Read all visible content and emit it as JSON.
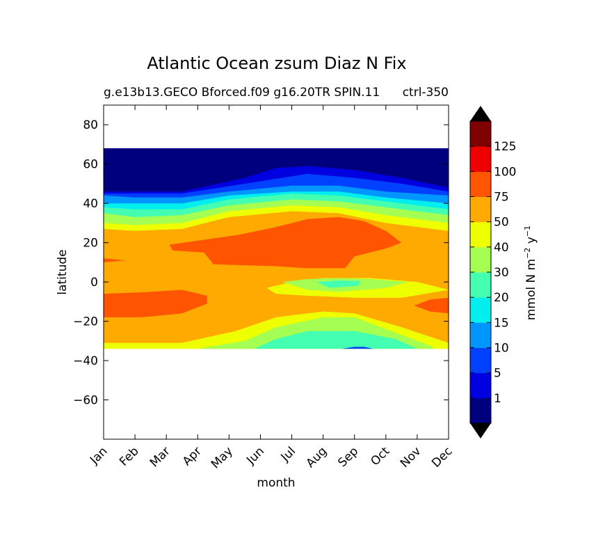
{
  "chart_data": {
    "type": "contourf",
    "title": "Atlantic Ocean zsum Diaz N Fix",
    "subtitle_left": "g.e13b13.GECO Bforced.f09 g16.20TR SPIN.11",
    "subtitle_right": "ctrl-350",
    "xlabel": "month",
    "ylabel": "latitude",
    "x_categories": [
      "Jan",
      "Feb",
      "Mar",
      "Apr",
      "May",
      "Jun",
      "Jul",
      "Aug",
      "Sep",
      "Oct",
      "Nov",
      "Dec"
    ],
    "ylim": [
      -80,
      90
    ],
    "y_ticks": [
      80,
      60,
      40,
      20,
      0,
      -20,
      -40,
      -60
    ],
    "y_tick_labels": [
      "80",
      "60",
      "40",
      "20",
      "0",
      "−20",
      "−40",
      "−60"
    ],
    "data_lat_range": [
      -34,
      68
    ],
    "colorbar": {
      "label": "mmol N m⁻² y⁻¹",
      "extend": "both",
      "tick_labels": [
        "1",
        "5",
        "10",
        "15",
        "20",
        "30",
        "40",
        "50",
        "75",
        "100",
        "125"
      ],
      "levels": [
        1,
        5,
        10,
        15,
        20,
        30,
        40,
        50,
        75,
        100,
        125
      ],
      "under_color": "#000000",
      "over_color": "#000000",
      "bin_colors": [
        "#00007f",
        "#0000e0",
        "#0040ff",
        "#0096ff",
        "#00eeee",
        "#44ffb2",
        "#a4ff52",
        "#eeff00",
        "#ffaa00",
        "#ff5500",
        "#ee0000",
        "#7f0000"
      ]
    },
    "approx_features": [
      {
        "region": "north of 46N",
        "value_range": "<1 to 10"
      },
      {
        "region": "40N-46N",
        "value_range": "10 to 30"
      },
      {
        "region": "15N-30N, Apr-Oct",
        "value_range": "75 to 100"
      },
      {
        "region": "5S-15S, Jan-Mar and Nov-Dec",
        "value_range": "75 to 100"
      },
      {
        "region": "0-5S, Jul-Sep",
        "value_range": "30 to 40"
      },
      {
        "region": "20S-34S, Jun-Oct",
        "value_range": "20 to 40"
      }
    ]
  }
}
